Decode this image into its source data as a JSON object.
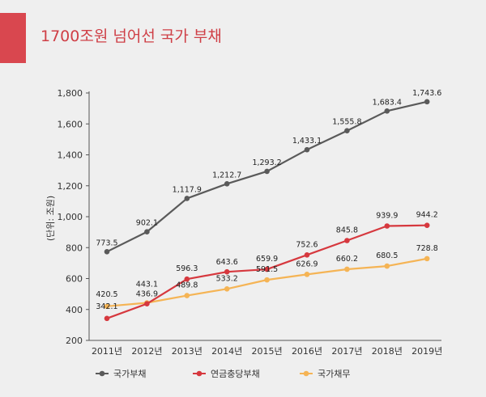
{
  "header": {
    "title": "1700조원 넘어선 국가 부채"
  },
  "chart_data": {
    "type": "line",
    "x": [
      "2011년",
      "2012년",
      "2013년",
      "2014년",
      "2015년",
      "2016년",
      "2017년",
      "2018년",
      "2019년"
    ],
    "ylabel": "(단위: 조원)",
    "ylim": [
      200,
      1800
    ],
    "yticks": [
      "200",
      "400",
      "600",
      "800",
      "1,000",
      "1,200",
      "1,400",
      "1,600",
      "1,800"
    ],
    "grid": false,
    "legend_position": "bottom",
    "series": [
      {
        "name": "국가부채",
        "color": "#5a5a5a",
        "values": [
          773.5,
          902.1,
          1117.9,
          1212.7,
          1293.2,
          1433.1,
          1555.8,
          1683.4,
          1743.6
        ],
        "labels": [
          "773.5",
          "902.1",
          "1,117.9",
          "1,212.7",
          "1,293.2",
          "1,433.1",
          "1,555.8",
          "1,683.4",
          "1,743.6"
        ]
      },
      {
        "name": "연금충당부채",
        "color": "#d6383e",
        "values": [
          342.1,
          436.9,
          596.3,
          643.6,
          659.9,
          752.6,
          845.8,
          939.9,
          944.2
        ],
        "labels": [
          "342.1",
          "436.9",
          "596.3",
          "643.6",
          "659.9",
          "752.6",
          "845.8",
          "939.9",
          "944.2"
        ]
      },
      {
        "name": "국가채무",
        "color": "#f5b455",
        "values": [
          420.5,
          443.1,
          489.8,
          533.2,
          591.5,
          626.9,
          660.2,
          680.5,
          728.8
        ],
        "labels": [
          "420.5",
          "443.1",
          "489.8",
          "533.2",
          "591.5",
          "626.9",
          "660.2",
          "680.5",
          "728.8"
        ]
      }
    ]
  }
}
